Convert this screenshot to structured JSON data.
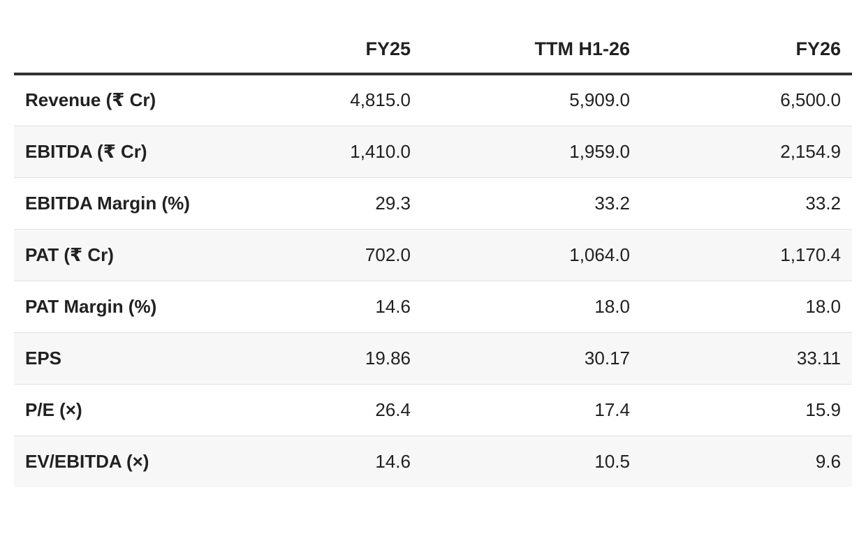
{
  "table": {
    "columns": [
      "",
      "FY25",
      "TTM H1-26",
      "FY26"
    ],
    "rows": [
      {
        "label": "Revenue (₹ Cr)",
        "fy25": "4,815.0",
        "ttm": "5,909.0",
        "fy26": "6,500.0"
      },
      {
        "label": "EBITDA (₹ Cr)",
        "fy25": "1,410.0",
        "ttm": "1,959.0",
        "fy26": "2,154.9"
      },
      {
        "label": "EBITDA Margin (%)",
        "fy25": "29.3",
        "ttm": "33.2",
        "fy26": "33.2"
      },
      {
        "label": "PAT (₹ Cr)",
        "fy25": "702.0",
        "ttm": "1,064.0",
        "fy26": "1,170.4"
      },
      {
        "label": "PAT Margin (%)",
        "fy25": "14.6",
        "ttm": "18.0",
        "fy26": "18.0"
      },
      {
        "label": "EPS",
        "fy25": "19.86",
        "ttm": "30.17",
        "fy26": "33.11"
      },
      {
        "label": "P/E (×)",
        "fy25": "26.4",
        "ttm": "17.4",
        "fy26": "15.9"
      },
      {
        "label": "EV/EBITDA (×)",
        "fy25": "14.6",
        "ttm": "10.5",
        "fy26": "9.6"
      }
    ]
  }
}
